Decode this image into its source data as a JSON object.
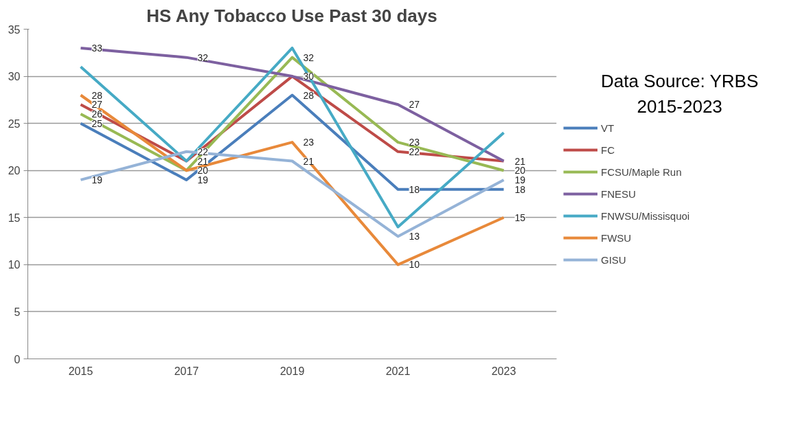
{
  "chart_data": {
    "type": "line",
    "title": "HS Any Tobacco Use Past 30 days",
    "categories": [
      "2015",
      "2017",
      "2019",
      "2021",
      "2023"
    ],
    "ylim": [
      0,
      35
    ],
    "yticks": [
      0,
      5,
      10,
      15,
      20,
      25,
      30,
      35
    ],
    "grid": "y",
    "legend": "right",
    "marker": "none",
    "line_style": "solid",
    "annotations": [
      "Data Source: YRBS 2015-2023"
    ],
    "series": [
      {
        "name": "VT",
        "color": "#4a7ebb",
        "values": [
          25,
          19,
          28,
          18,
          18
        ],
        "value_labels": [
          "25",
          "19",
          "28",
          "18",
          "18"
        ]
      },
      {
        "name": "FC",
        "color": "#be4b48",
        "values": [
          27,
          21,
          30,
          22,
          21
        ],
        "value_labels": [
          "27",
          "21",
          "30",
          "22",
          "21"
        ]
      },
      {
        "name": "FCSU/Maple Run",
        "color": "#98b954",
        "values": [
          26,
          20,
          32,
          23,
          20
        ],
        "value_labels": [
          "26",
          "20",
          "32",
          "23",
          "20"
        ]
      },
      {
        "name": "FNESU",
        "color": "#7d60a0",
        "values": [
          33,
          32,
          30,
          27,
          21
        ],
        "value_labels": [
          "33",
          "32",
          null,
          "27",
          null
        ]
      },
      {
        "name": "FNWSU/Missisquoi",
        "color": "#46aac5",
        "values": [
          31,
          21,
          33,
          14,
          24
        ]
      },
      {
        "name": "FWSU",
        "color": "#e8893a",
        "values": [
          28,
          20,
          23,
          10,
          15
        ],
        "value_labels": [
          "28",
          null,
          "23",
          "10",
          "15"
        ]
      },
      {
        "name": "GISU",
        "color": "#95b3d7",
        "values": [
          19,
          22,
          21,
          13,
          19
        ],
        "value_labels": [
          "19",
          "22",
          "21",
          "13",
          "19"
        ]
      }
    ]
  }
}
